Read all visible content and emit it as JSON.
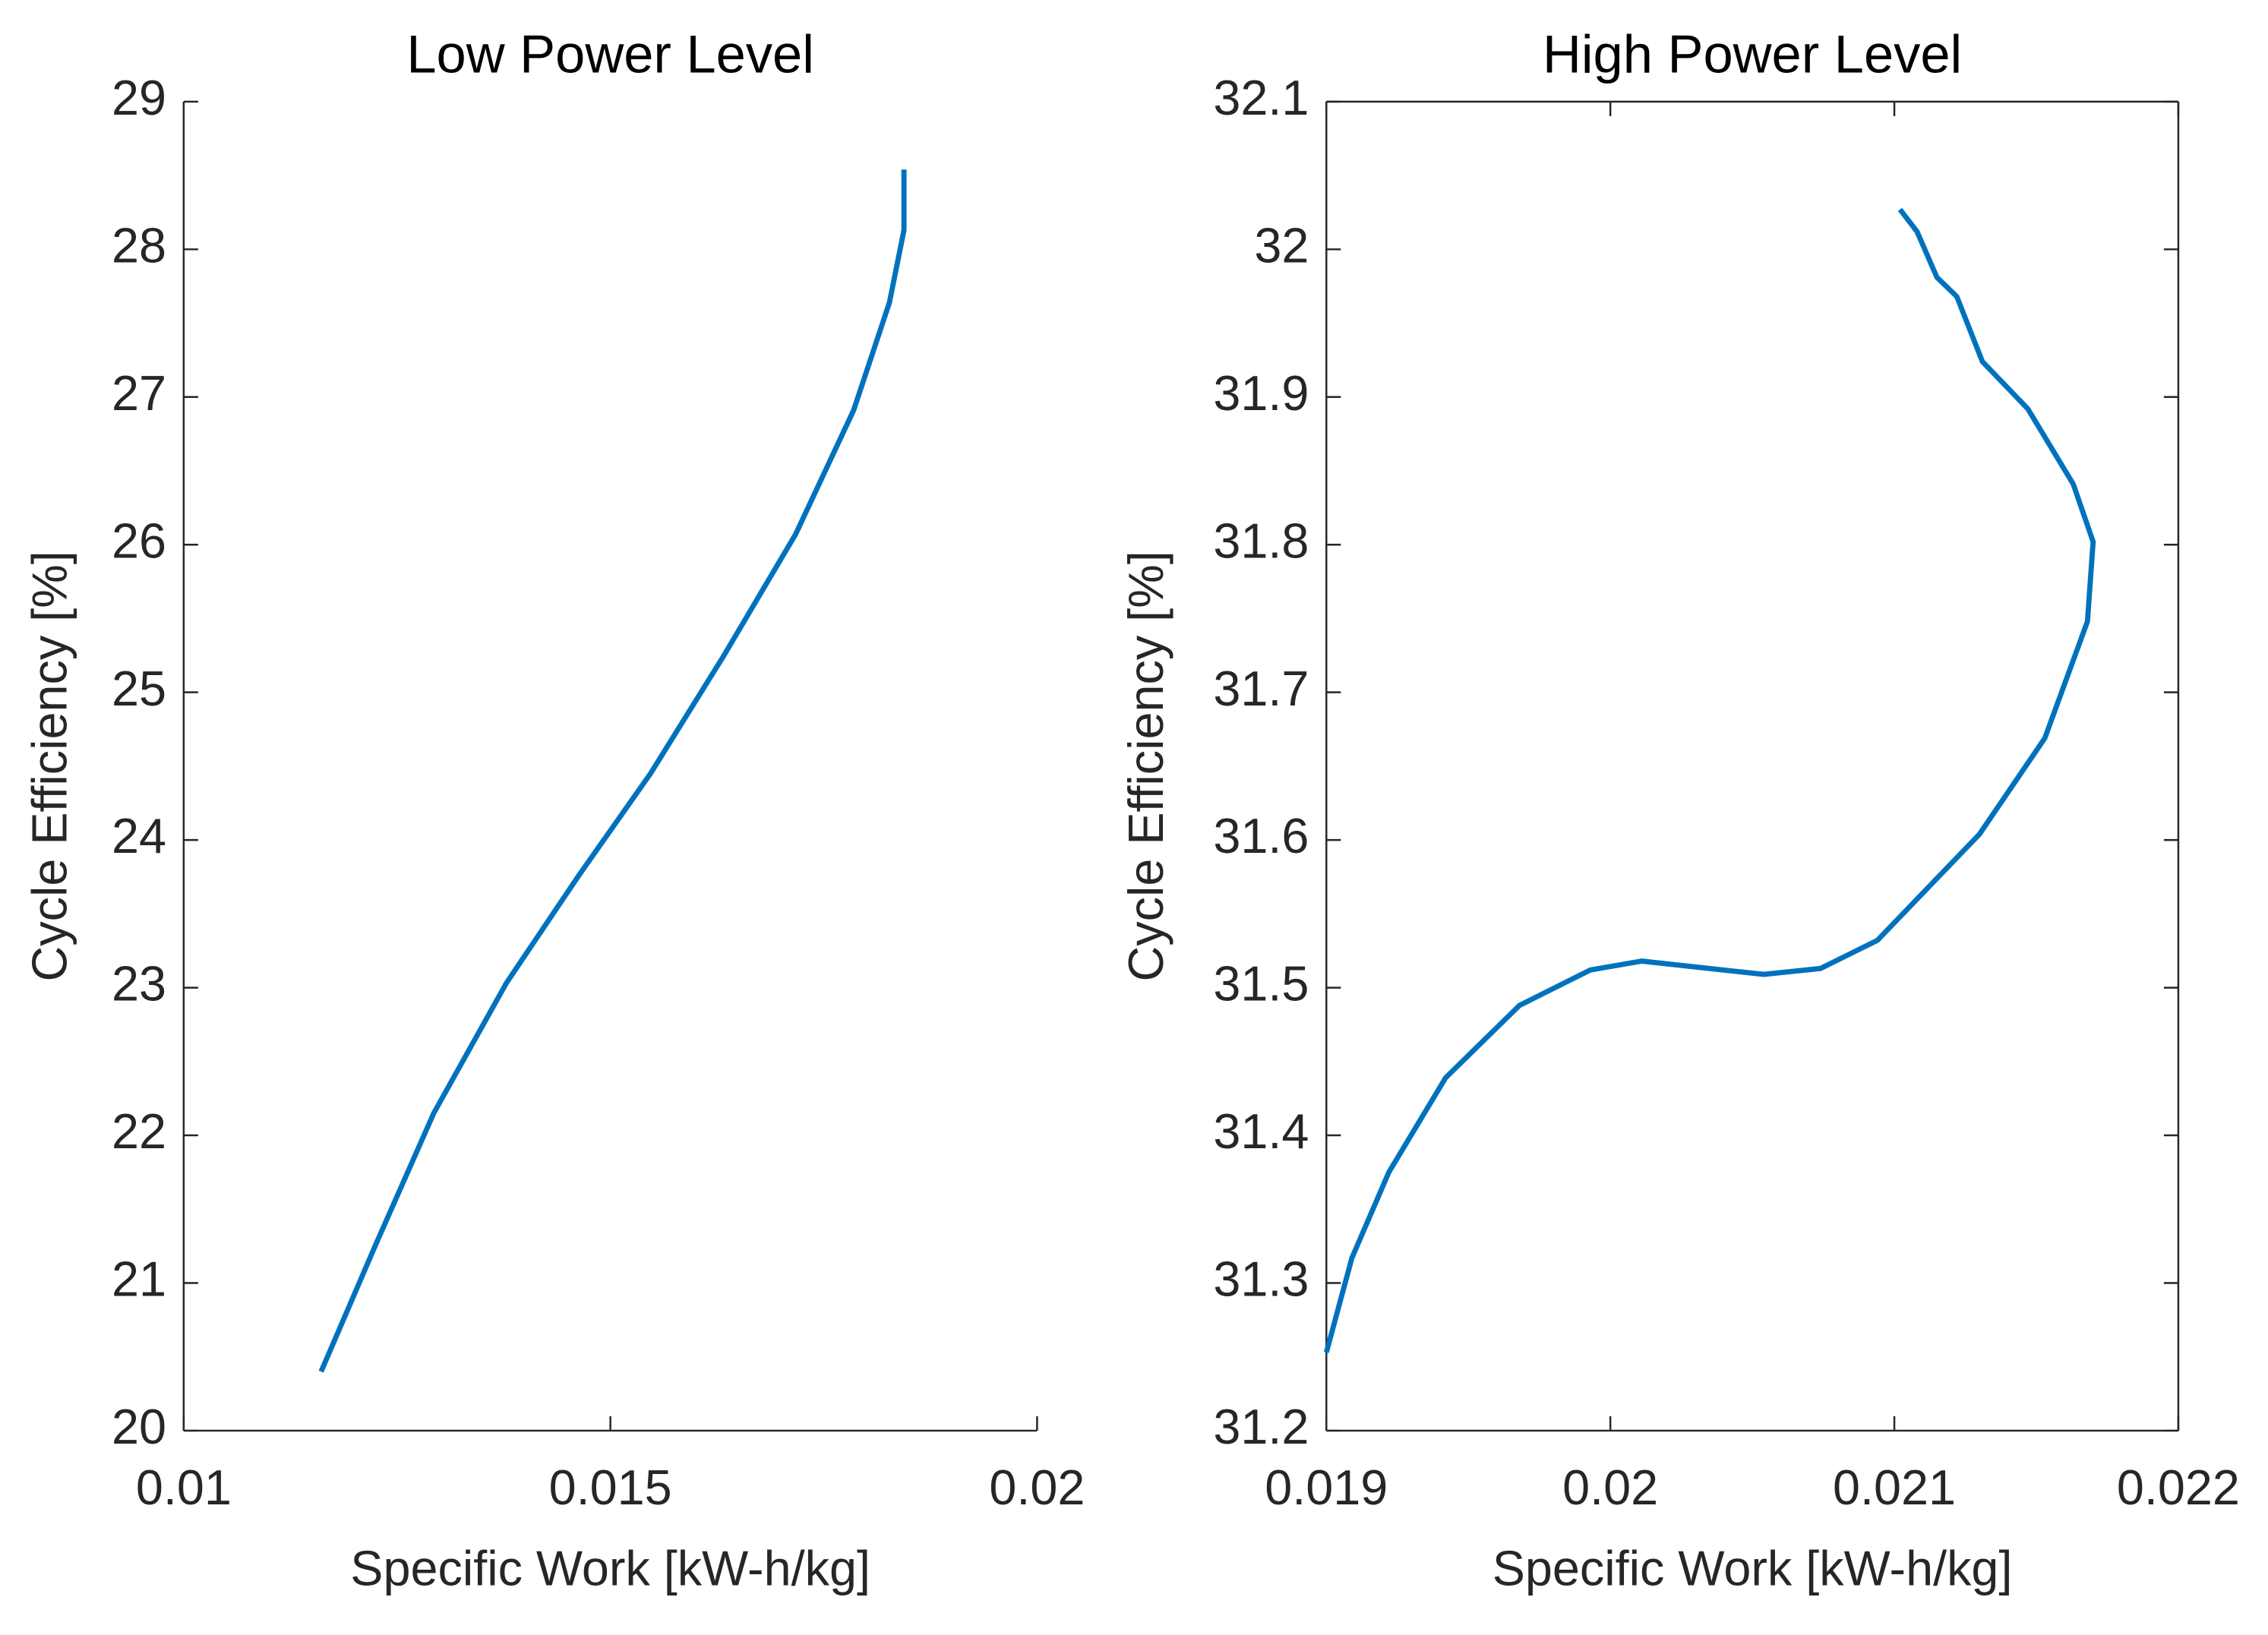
{
  "chart_data": [
    {
      "type": "line",
      "title": "Low Power Level",
      "xlabel": "Specific Work [kW-h/kg]",
      "ylabel": "Cycle Efficiency [%]",
      "x": [
        0.01161,
        0.01225,
        0.01293,
        0.01378,
        0.01463,
        0.01547,
        0.01632,
        0.01717,
        0.01785,
        0.01827,
        0.01844,
        0.01844
      ],
      "values": [
        20.4,
        21.26,
        22.15,
        23.03,
        23.76,
        24.45,
        25.24,
        26.07,
        26.91,
        27.64,
        28.13,
        28.54
      ],
      "color": "#0072bd",
      "box": false,
      "xlim": [
        0.01,
        0.02
      ],
      "xticks": [
        0.01,
        0.015,
        0.02
      ],
      "ylim": [
        20,
        29
      ],
      "yticks": [
        20,
        21,
        22,
        23,
        24,
        25,
        26,
        27,
        28,
        29
      ]
    },
    {
      "type": "line",
      "title": "High Power Level",
      "xlabel": "Specific Work [kW-h/kg]",
      "ylabel": "Cycle Efficiency [%]",
      "x": [
        0.019,
        0.01909,
        0.01922,
        0.01942,
        0.01968,
        0.01993,
        0.02011,
        0.02054,
        0.02074,
        0.02094,
        0.0213,
        0.02153,
        0.02168,
        0.0217,
        0.02163,
        0.02147,
        0.02131,
        0.02122,
        0.02115,
        0.02108,
        0.02102
      ],
      "values": [
        31.253,
        31.317,
        31.375,
        31.439,
        31.488,
        31.512,
        31.518,
        31.509,
        31.513,
        31.532,
        31.604,
        31.669,
        31.748,
        31.802,
        31.841,
        31.892,
        31.924,
        31.968,
        31.981,
        32.012,
        32.027
      ],
      "color": "#0072bd",
      "box": true,
      "xlim": [
        0.019,
        0.022
      ],
      "xticks": [
        0.019,
        0.02,
        0.021,
        0.022
      ],
      "ylim": [
        31.2,
        32.1
      ],
      "yticks": [
        31.2,
        31.3,
        31.4,
        31.5,
        31.6,
        31.7,
        31.8,
        31.9,
        32,
        32.1
      ]
    }
  ]
}
